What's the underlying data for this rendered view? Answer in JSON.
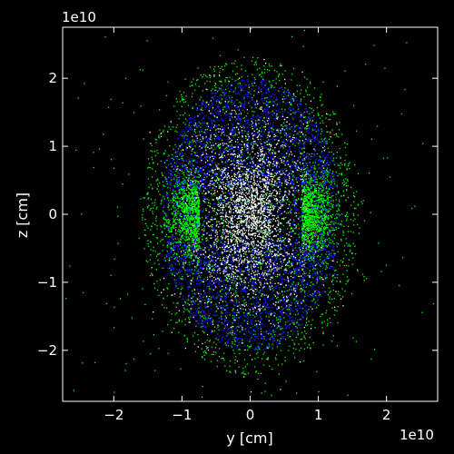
{
  "chart_data": {
    "type": "scatter",
    "title": "",
    "xlabel": "y [cm]",
    "ylabel": "z [cm]",
    "x_offset_label": "1e10",
    "y_offset_label": "1e10",
    "xlim": [
      -2.75,
      2.75
    ],
    "ylim": [
      -2.75,
      2.75
    ],
    "xticks": [
      -2,
      -1,
      0,
      1,
      2
    ],
    "yticks": [
      -2,
      -1,
      0,
      1,
      2
    ],
    "xtick_labels": [
      "−2",
      "−1",
      "0",
      "1",
      "2"
    ],
    "ytick_labels": [
      "−2",
      "−1",
      "0",
      "1",
      "2"
    ],
    "grid": false,
    "background": "#000000",
    "axes_color": "#ffffff",
    "reference_lines": [
      {
        "orientation": "horizontal",
        "value": 0,
        "from": -1.0,
        "to": 1.2,
        "style": "dashed",
        "color": "#000000"
      },
      {
        "orientation": "vertical",
        "value": 0,
        "from": -1.4,
        "to": 1.4,
        "style": "dashed",
        "color": "#000000"
      }
    ],
    "series": [
      {
        "color": "#00ff00",
        "shape": "torus-dominated outer envelope",
        "extent_y": [
          -1.9,
          1.9
        ],
        "extent_z": [
          -2.6,
          2.6
        ]
      },
      {
        "color": "#1a1aff",
        "shape": "bipolar lobes",
        "extent_y": [
          -1.3,
          1.3
        ],
        "extent_z": [
          -2.1,
          2.1
        ]
      },
      {
        "color": "#ffffff",
        "shape": "hourglass core",
        "extent_y": [
          -0.9,
          0.9
        ],
        "extent_z": [
          -1.5,
          1.5
        ]
      }
    ]
  }
}
